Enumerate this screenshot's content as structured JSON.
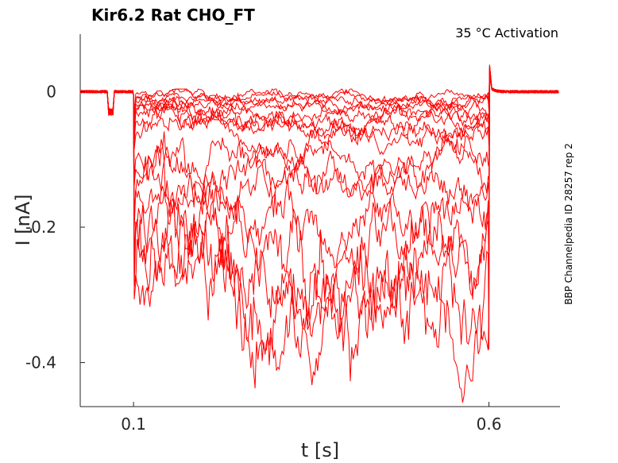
{
  "chart_data": {
    "type": "line",
    "title": "Kir6.2  Rat  CHO_FT",
    "subtitle": "35 °C  Activation",
    "side_note": "BBP Channelpedia ID 28257 rep 2",
    "xlabel": "t [s]",
    "ylabel": "I [nA]",
    "xlim": [
      0.025,
      0.7
    ],
    "ylim": [
      -0.465,
      0.085
    ],
    "x_ticks": [
      0.1,
      0.6
    ],
    "x_tick_labels": [
      "0.1",
      "0.6"
    ],
    "y_ticks": [
      0,
      -0.2,
      -0.4
    ],
    "y_tick_labels": [
      "0",
      "-0.2",
      "-0.4"
    ],
    "grid": false,
    "legend": "none",
    "line_color": "#ff0000",
    "pulse": {
      "baseline_start": 0.025,
      "step_on": 0.1,
      "step_off": 0.6,
      "end": 0.7
    },
    "prepulse_artifact": {
      "start": 0.065,
      "end": 0.072,
      "value": -0.03
    },
    "series": [
      {
        "start": -0.005,
        "end": -0.008
      },
      {
        "start": -0.008,
        "end": -0.012
      },
      {
        "start": -0.012,
        "end": -0.016
      },
      {
        "start": -0.016,
        "end": -0.02
      },
      {
        "start": -0.02,
        "end": -0.026
      },
      {
        "start": -0.025,
        "end": -0.033
      },
      {
        "start": -0.03,
        "end": -0.04
      },
      {
        "start": -0.036,
        "end": -0.05
      },
      {
        "start": -0.042,
        "end": -0.06
      },
      {
        "start": -0.05,
        "end": -0.07
      },
      {
        "start": -0.09,
        "end": -0.1
      },
      {
        "start": -0.1,
        "end": -0.12
      },
      {
        "start": -0.15,
        "end": -0.14
      },
      {
        "start": -0.16,
        "end": -0.18
      },
      {
        "start": -0.21,
        "end": -0.23
      },
      {
        "start": -0.245,
        "end": -0.27
      },
      {
        "start": -0.26,
        "end": -0.31
      },
      {
        "start": -0.24,
        "end": -0.37
      }
    ]
  }
}
